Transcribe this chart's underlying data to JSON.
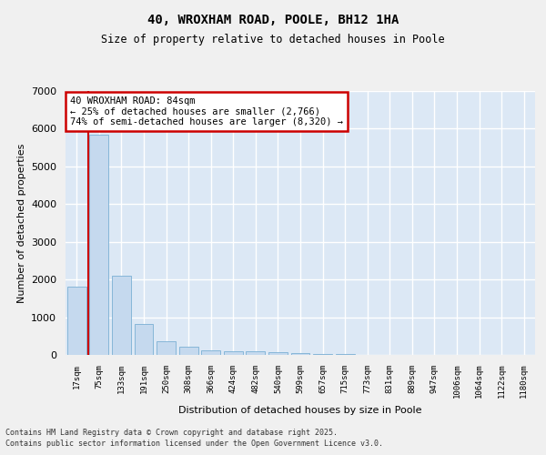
{
  "title1": "40, WROXHAM ROAD, POOLE, BH12 1HA",
  "title2": "Size of property relative to detached houses in Poole",
  "xlabel": "Distribution of detached houses by size in Poole",
  "ylabel": "Number of detached properties",
  "categories": [
    "17sqm",
    "75sqm",
    "133sqm",
    "191sqm",
    "250sqm",
    "308sqm",
    "366sqm",
    "424sqm",
    "482sqm",
    "540sqm",
    "599sqm",
    "657sqm",
    "715sqm",
    "773sqm",
    "831sqm",
    "889sqm",
    "947sqm",
    "1006sqm",
    "1064sqm",
    "1122sqm",
    "1180sqm"
  ],
  "values": [
    1800,
    5850,
    2100,
    820,
    370,
    210,
    130,
    100,
    90,
    70,
    55,
    30,
    15,
    8,
    5,
    4,
    3,
    2,
    2,
    1,
    1
  ],
  "bar_color": "#c5d9ee",
  "bar_edge_color": "#7aafd4",
  "vline_color": "#cc0000",
  "vline_x": 0.5,
  "annotation_text": "40 WROXHAM ROAD: 84sqm\n← 25% of detached houses are smaller (2,766)\n74% of semi-detached houses are larger (8,320) →",
  "annotation_box_color": "#ffffff",
  "annotation_box_edge": "#cc0000",
  "ylim": [
    0,
    7000
  ],
  "yticks": [
    0,
    1000,
    2000,
    3000,
    4000,
    5000,
    6000,
    7000
  ],
  "bg_color": "#dce8f5",
  "grid_color": "#ffffff",
  "footer1": "Contains HM Land Registry data © Crown copyright and database right 2025.",
  "footer2": "Contains public sector information licensed under the Open Government Licence v3.0."
}
